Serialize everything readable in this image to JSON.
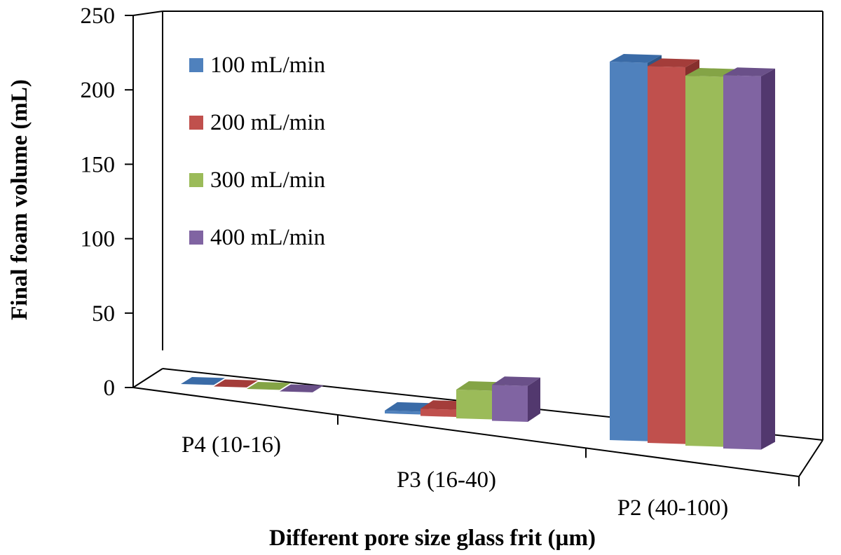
{
  "chart_data": {
    "type": "bar",
    "title": "",
    "xlabel": "Different pore size glass frit (µm)",
    "ylabel": "Final foam volume (mL)",
    "ylim": [
      0,
      250
    ],
    "yticks": [
      0,
      50,
      100,
      150,
      200,
      250
    ],
    "yticks_labels": [
      "0",
      "50",
      "100",
      "150",
      "200",
      "250"
    ],
    "categories": [
      "P4 (10-16)",
      "P3 (16-40)",
      "P2 (40-100)"
    ],
    "series": [
      {
        "name": "100 mL/min",
        "values": [
          0,
          2,
          225
        ]
      },
      {
        "name": "200 mL/min",
        "values": [
          0,
          5,
          224
        ]
      },
      {
        "name": "300 mL/min",
        "values": [
          0,
          20,
          220
        ]
      },
      {
        "name": "400 mL/min",
        "values": [
          0,
          25,
          222
        ]
      }
    ],
    "legend_position": "top-left",
    "colors": {
      "100 mL/min": {
        "front": "#4F81BD",
        "top": "#3A6BA7",
        "side": "#2E5687"
      },
      "200 mL/min": {
        "front": "#C0504D",
        "top": "#A43D3A",
        "side": "#86302D"
      },
      "300 mL/min": {
        "front": "#9BBB59",
        "top": "#84A446",
        "side": "#6B8836"
      },
      "400 mL/min": {
        "front": "#8064A2",
        "top": "#6A5089",
        "side": "#52386E"
      }
    }
  }
}
